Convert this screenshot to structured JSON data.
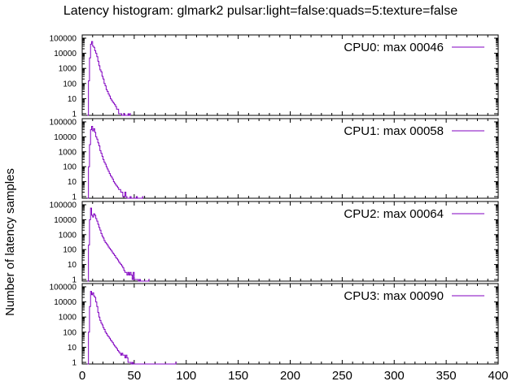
{
  "chart_data": {
    "type": "line",
    "title": "Latency histogram:  glmark2 pulsar:light=false:quads=5:texture=false",
    "ylabel": "Number of latency samples",
    "xlabel": "",
    "xlim": [
      0,
      400
    ],
    "x_ticks": [
      "0",
      "50",
      "100",
      "150",
      "200",
      "250",
      "300",
      "350",
      "400"
    ],
    "y_scale": "log",
    "ylim": [
      1,
      100000
    ],
    "y_ticks": [
      "1",
      "10",
      "100",
      "1000",
      "10000",
      "100000"
    ],
    "series_color": "#8000c0",
    "legend_placement": "top-right",
    "grid": false,
    "panels": [
      {
        "legend": "CPU0: max 00046",
        "points": [
          [
            5,
            0
          ],
          [
            6,
            150
          ],
          [
            7,
            5000
          ],
          [
            8,
            40000
          ],
          [
            9,
            60000
          ],
          [
            10,
            30000
          ],
          [
            11,
            25000
          ],
          [
            12,
            15000
          ],
          [
            13,
            10000
          ],
          [
            14,
            6000
          ],
          [
            15,
            3000
          ],
          [
            16,
            1500
          ],
          [
            17,
            800
          ],
          [
            18,
            600
          ],
          [
            19,
            300
          ],
          [
            20,
            200
          ],
          [
            21,
            100
          ],
          [
            22,
            70
          ],
          [
            23,
            40
          ],
          [
            24,
            30
          ],
          [
            25,
            20
          ],
          [
            26,
            15
          ],
          [
            27,
            10
          ],
          [
            28,
            8
          ],
          [
            29,
            6
          ],
          [
            30,
            5
          ],
          [
            31,
            4
          ],
          [
            32,
            3
          ],
          [
            33,
            2
          ],
          [
            34,
            2
          ],
          [
            35,
            1
          ],
          [
            36,
            1
          ],
          [
            37,
            1
          ],
          [
            38,
            0
          ],
          [
            39,
            0
          ],
          [
            40,
            1
          ],
          [
            41,
            0
          ],
          [
            42,
            0
          ],
          [
            43,
            0
          ],
          [
            44,
            1
          ],
          [
            45,
            0
          ],
          [
            46,
            1
          ]
        ]
      },
      {
        "legend": "CPU1: max 00058",
        "points": [
          [
            5,
            0
          ],
          [
            6,
            100
          ],
          [
            7,
            3000
          ],
          [
            8,
            30000
          ],
          [
            9,
            50000
          ],
          [
            10,
            25000
          ],
          [
            11,
            35000
          ],
          [
            12,
            20000
          ],
          [
            13,
            10000
          ],
          [
            14,
            7000
          ],
          [
            15,
            4000
          ],
          [
            16,
            2500
          ],
          [
            17,
            1200
          ],
          [
            18,
            800
          ],
          [
            19,
            500
          ],
          [
            20,
            300
          ],
          [
            21,
            200
          ],
          [
            22,
            150
          ],
          [
            23,
            100
          ],
          [
            24,
            70
          ],
          [
            25,
            50
          ],
          [
            26,
            35
          ],
          [
            27,
            25
          ],
          [
            28,
            20
          ],
          [
            29,
            15
          ],
          [
            30,
            10
          ],
          [
            31,
            8
          ],
          [
            32,
            6
          ],
          [
            33,
            5
          ],
          [
            34,
            4
          ],
          [
            35,
            3
          ],
          [
            36,
            3
          ],
          [
            37,
            2
          ],
          [
            38,
            2
          ],
          [
            39,
            1
          ],
          [
            40,
            1
          ],
          [
            41,
            2
          ],
          [
            42,
            1
          ],
          [
            43,
            0
          ],
          [
            44,
            0
          ],
          [
            45,
            0
          ],
          [
            46,
            1
          ],
          [
            47,
            0
          ],
          [
            48,
            0
          ],
          [
            49,
            0
          ],
          [
            50,
            0
          ],
          [
            51,
            0
          ],
          [
            52,
            1
          ],
          [
            53,
            0
          ],
          [
            54,
            0
          ],
          [
            55,
            0
          ],
          [
            56,
            0
          ],
          [
            57,
            0
          ],
          [
            58,
            1
          ]
        ]
      },
      {
        "legend": "CPU2: max 00064",
        "points": [
          [
            5,
            0
          ],
          [
            6,
            200
          ],
          [
            7,
            10000
          ],
          [
            8,
            60000
          ],
          [
            9,
            20000
          ],
          [
            10,
            15000
          ],
          [
            11,
            25000
          ],
          [
            12,
            20000
          ],
          [
            13,
            12000
          ],
          [
            14,
            8000
          ],
          [
            15,
            5000
          ],
          [
            16,
            3000
          ],
          [
            17,
            2000
          ],
          [
            18,
            1200
          ],
          [
            19,
            800
          ],
          [
            20,
            600
          ],
          [
            21,
            400
          ],
          [
            22,
            300
          ],
          [
            23,
            250
          ],
          [
            24,
            200
          ],
          [
            25,
            150
          ],
          [
            26,
            120
          ],
          [
            27,
            100
          ],
          [
            28,
            80
          ],
          [
            29,
            60
          ],
          [
            30,
            50
          ],
          [
            31,
            40
          ],
          [
            32,
            30
          ],
          [
            33,
            25
          ],
          [
            34,
            20
          ],
          [
            35,
            15
          ],
          [
            36,
            12
          ],
          [
            37,
            10
          ],
          [
            38,
            8
          ],
          [
            39,
            6
          ],
          [
            40,
            4
          ],
          [
            41,
            3
          ],
          [
            42,
            3
          ],
          [
            43,
            2
          ],
          [
            44,
            3
          ],
          [
            45,
            2
          ],
          [
            46,
            3
          ],
          [
            47,
            2
          ],
          [
            48,
            1
          ],
          [
            49,
            3
          ],
          [
            50,
            1
          ],
          [
            51,
            1
          ],
          [
            52,
            1
          ],
          [
            53,
            1
          ],
          [
            54,
            0
          ],
          [
            55,
            1
          ],
          [
            56,
            0
          ],
          [
            57,
            0
          ],
          [
            58,
            0
          ],
          [
            59,
            0
          ],
          [
            60,
            0
          ],
          [
            61,
            0
          ],
          [
            62,
            0
          ],
          [
            63,
            0
          ],
          [
            64,
            1
          ]
        ]
      },
      {
        "legend": "CPU3: max 00090",
        "points": [
          [
            5,
            0
          ],
          [
            6,
            100
          ],
          [
            7,
            5000
          ],
          [
            8,
            50000
          ],
          [
            9,
            30000
          ],
          [
            10,
            40000
          ],
          [
            11,
            25000
          ],
          [
            12,
            20000
          ],
          [
            13,
            10000
          ],
          [
            14,
            5000
          ],
          [
            15,
            2000
          ],
          [
            16,
            1000
          ],
          [
            17,
            600
          ],
          [
            18,
            400
          ],
          [
            19,
            300
          ],
          [
            20,
            200
          ],
          [
            21,
            150
          ],
          [
            22,
            100
          ],
          [
            23,
            80
          ],
          [
            24,
            60
          ],
          [
            25,
            50
          ],
          [
            26,
            40
          ],
          [
            27,
            30
          ],
          [
            28,
            25
          ],
          [
            29,
            20
          ],
          [
            30,
            15
          ],
          [
            31,
            12
          ],
          [
            32,
            10
          ],
          [
            33,
            8
          ],
          [
            34,
            6
          ],
          [
            35,
            5
          ],
          [
            36,
            4
          ],
          [
            37,
            3
          ],
          [
            38,
            4
          ],
          [
            39,
            3
          ],
          [
            40,
            3
          ],
          [
            41,
            2
          ],
          [
            42,
            3
          ],
          [
            43,
            2
          ],
          [
            44,
            1
          ],
          [
            45,
            1
          ],
          [
            46,
            1
          ],
          [
            47,
            0
          ],
          [
            48,
            1
          ],
          [
            49,
            0
          ],
          [
            50,
            0
          ],
          [
            89,
            0
          ],
          [
            90,
            1
          ]
        ]
      }
    ]
  }
}
